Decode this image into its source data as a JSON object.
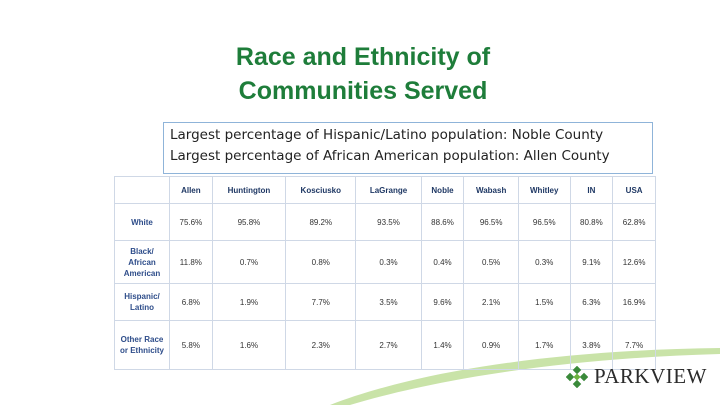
{
  "title": {
    "lines": [
      "Race and Ethnicity of",
      "Communities Served"
    ]
  },
  "note": {
    "lines": [
      "Largest percentage of Hispanic/Latino population: Noble County",
      "Largest percentage of African American population: Allen County"
    ]
  },
  "table": {
    "header": [
      "Allen",
      "Huntington",
      "Kosciusko",
      "LaGrange",
      "Noble",
      "Wabash",
      "Whitley",
      "IN",
      "USA"
    ],
    "rows": [
      [
        "White",
        "75.6%",
        "95.8%",
        "89.2%",
        "93.5%",
        "88.6%",
        "96.5%",
        "96.5%",
        "80.8%",
        "62.8%"
      ],
      [
        "Black/ African American",
        "11.8%",
        "0.7%",
        "0.8%",
        "0.3%",
        "0.4%",
        "0.5%",
        "0.3%",
        "9.1%",
        "12.6%"
      ],
      [
        "Hispanic/ Latino",
        "6.8%",
        "1.9%",
        "7.7%",
        "3.5%",
        "9.6%",
        "2.1%",
        "1.5%",
        "6.3%",
        "16.9%"
      ],
      [
        "Other Race or Ethnicity",
        "5.8%",
        "1.6%",
        "2.3%",
        "2.7%",
        "1.4%",
        "0.9%",
        "1.7%",
        "3.8%",
        "7.7%"
      ]
    ]
  },
  "logo": {
    "text": "PARKVIEW"
  }
}
